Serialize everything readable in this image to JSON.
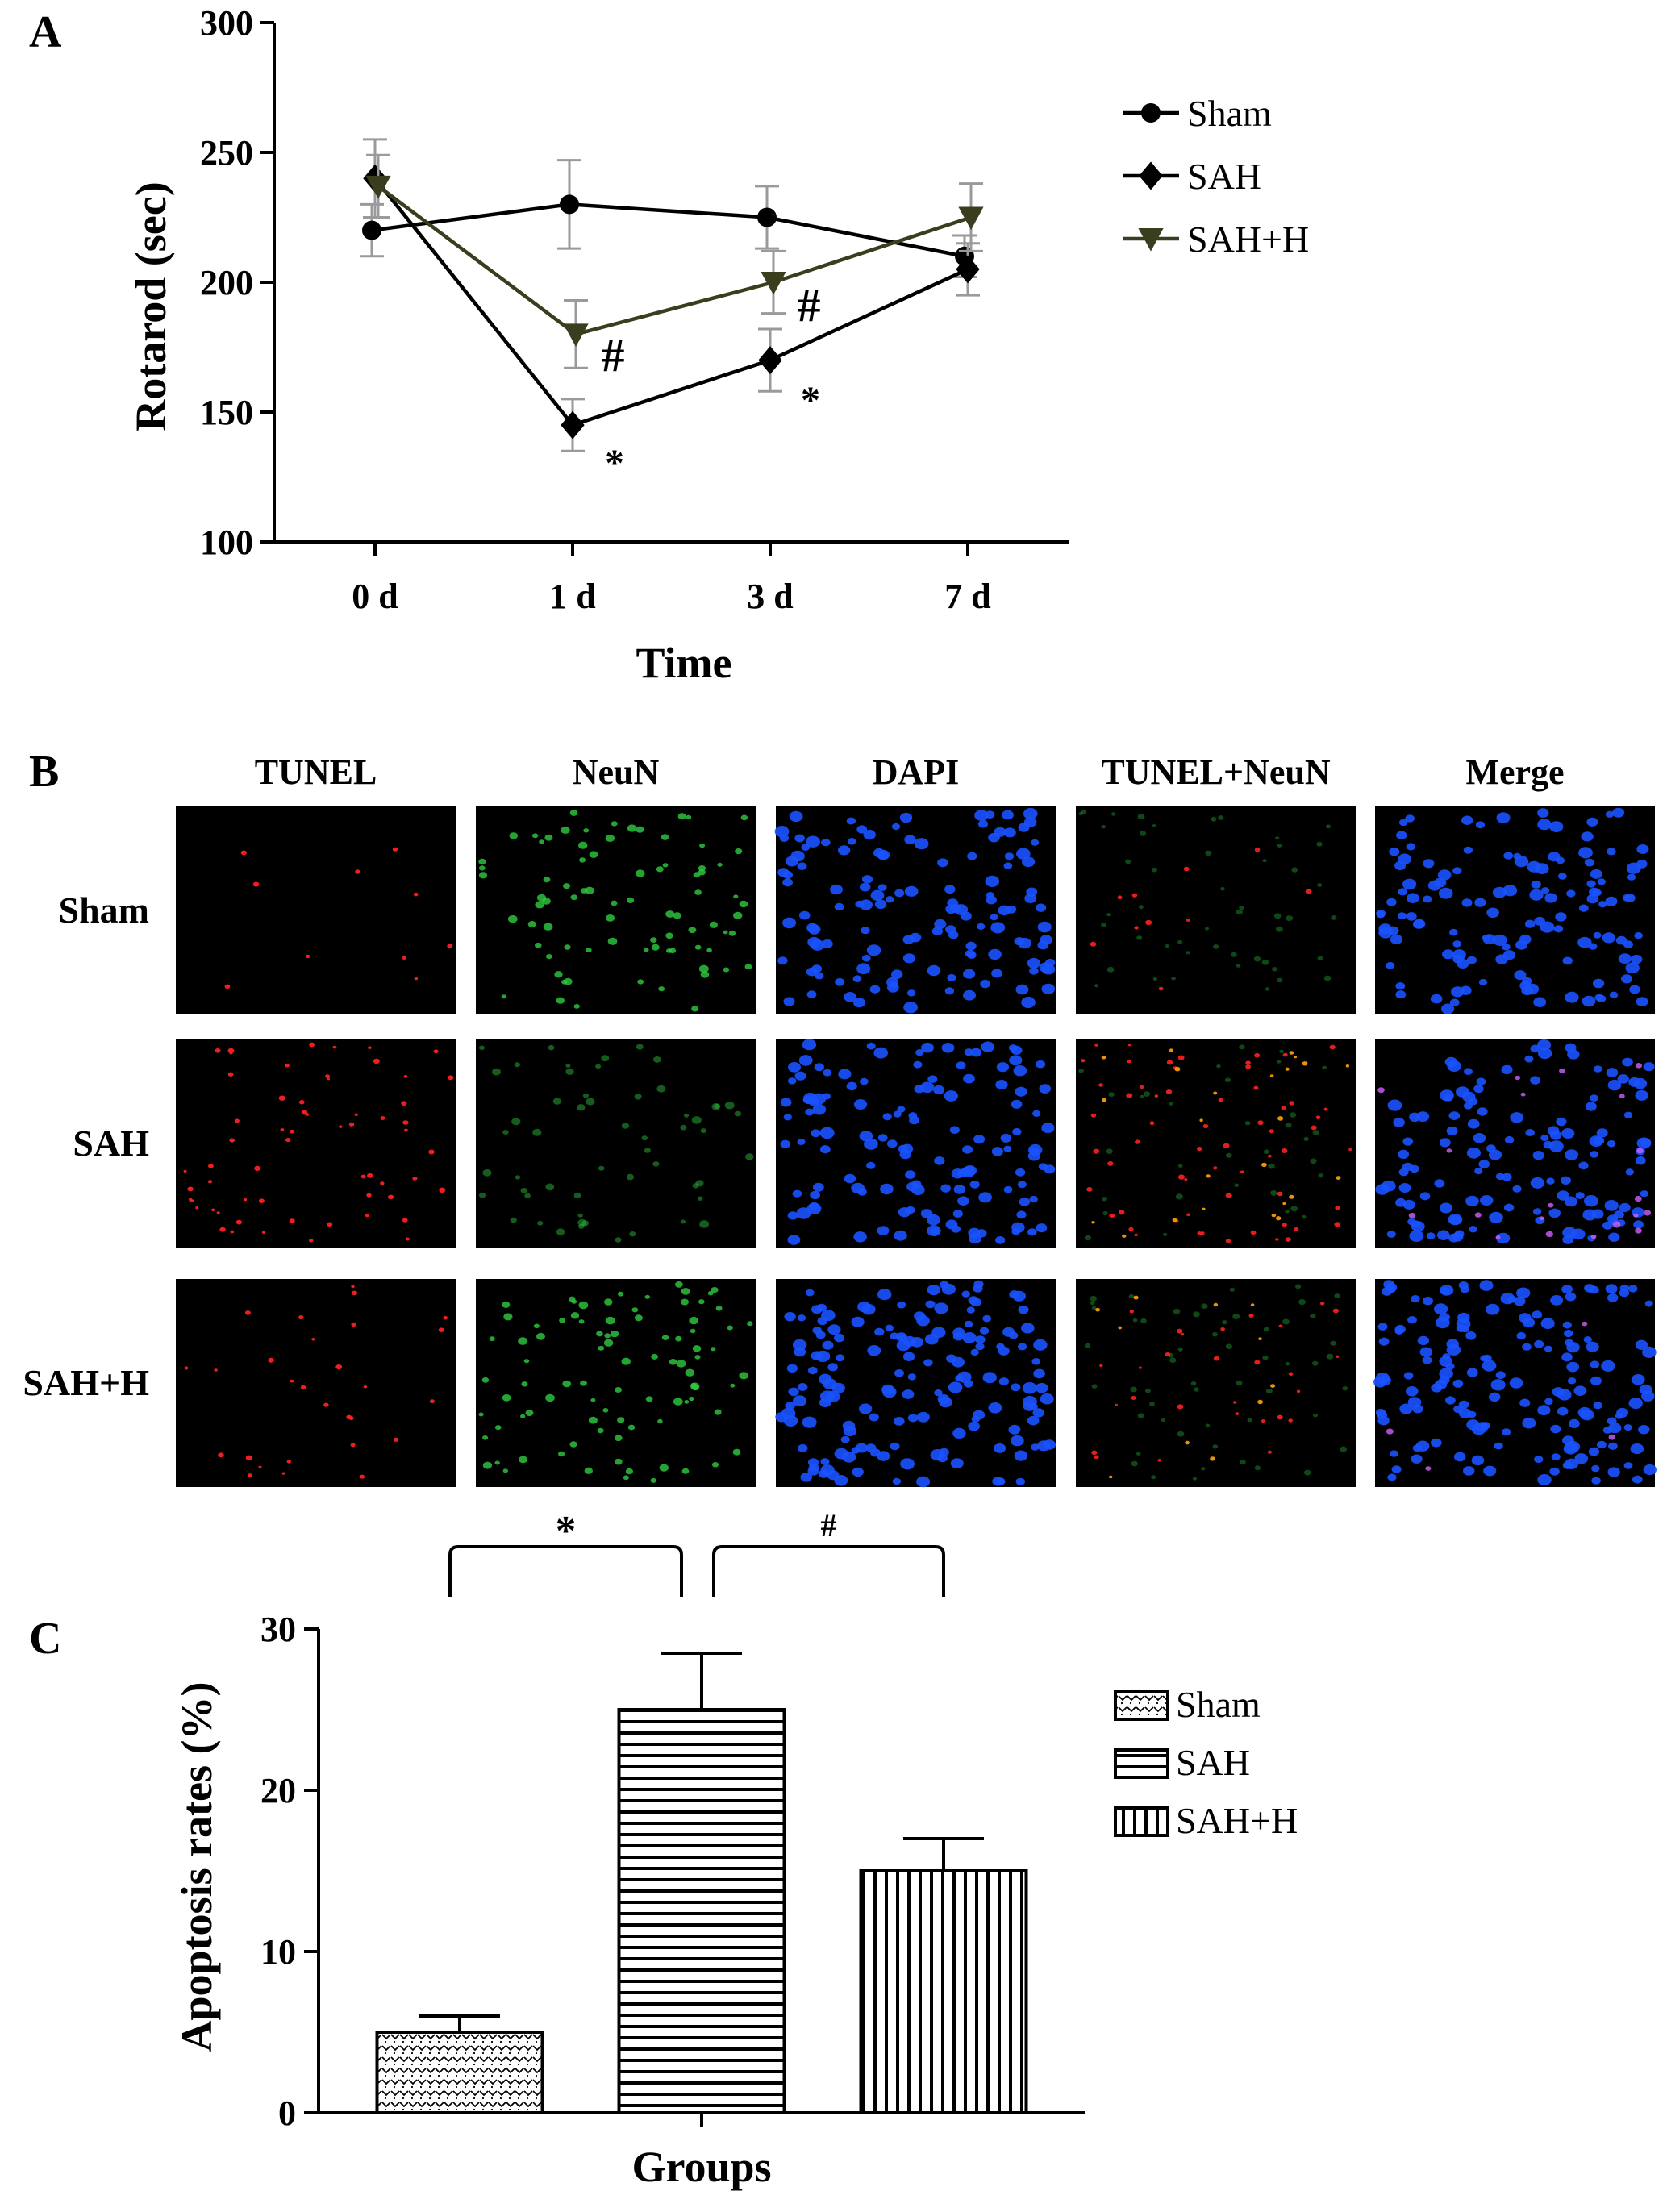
{
  "panels": {
    "a": {
      "letter": "A",
      "chart_data": {
        "type": "line",
        "xlabel": "Time",
        "ylabel": "Rotarod (sec)",
        "ylim": [
          100,
          300
        ],
        "yticks": [
          100,
          150,
          200,
          250,
          300
        ],
        "categories": [
          "0 d",
          "1 d",
          "3 d",
          "7 d"
        ],
        "legend_position": "right",
        "series": [
          {
            "name": "Sham",
            "marker": "circle",
            "color": "#000000",
            "values": [
              220,
              230,
              225,
              210
            ],
            "errors": [
              10,
              17,
              12,
              8
            ]
          },
          {
            "name": "SAH",
            "marker": "diamond",
            "color": "#000000",
            "values": [
              240,
              145,
              170,
              205
            ],
            "errors": [
              15,
              10,
              12,
              10
            ]
          },
          {
            "name": "SAH+H",
            "marker": "triangle-down",
            "color": "#3b3d1f",
            "values": [
              237,
              180,
              200,
              225
            ],
            "errors": [
              12,
              13,
              12,
              13
            ]
          }
        ],
        "annotations": [
          {
            "text": "#",
            "category": "1 d"
          },
          {
            "text": "*",
            "category": "1 d"
          },
          {
            "text": "#",
            "category": "3 d"
          },
          {
            "text": "*",
            "category": "3 d"
          }
        ]
      }
    },
    "b": {
      "letter": "B",
      "columns": [
        "TUNEL",
        "NeuN",
        "DAPI",
        "TUNEL+NeuN",
        "Merge"
      ],
      "rows": [
        "Sham",
        "SAH",
        "SAH+H"
      ],
      "channel_colors": {
        "tunel": "#ff2020",
        "neun": "#2ecc40",
        "dapi": "#1a52ff",
        "merge_overlap": "#d060ff"
      }
    },
    "c": {
      "letter": "C",
      "chart_data": {
        "type": "bar",
        "xlabel": "Groups",
        "ylabel": "Apoptosis rates (%)",
        "ylim": [
          0,
          30
        ],
        "yticks": [
          0,
          10,
          20,
          30
        ],
        "categories": [
          "Sham",
          "SAH",
          "SAH+H"
        ],
        "values": [
          5,
          25,
          15
        ],
        "errors": [
          1,
          3.5,
          2
        ],
        "patterns": [
          "dotted",
          "horizontal-stripes",
          "vertical-stripes"
        ],
        "legend_position": "right",
        "legend": [
          "Sham",
          "SAH",
          "SAH+H"
        ],
        "significance": [
          {
            "from": "Sham",
            "to": "SAH",
            "text": "*"
          },
          {
            "from": "SAH",
            "to": "SAH+H",
            "text": "#"
          }
        ]
      }
    }
  }
}
